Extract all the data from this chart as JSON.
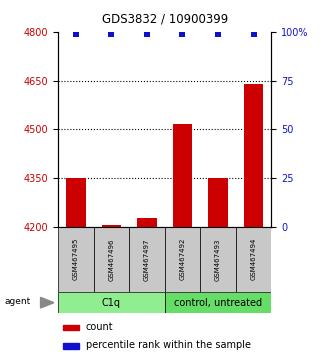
{
  "title": "GDS3832 / 10900399",
  "samples": [
    "GSM467495",
    "GSM467496",
    "GSM467497",
    "GSM467492",
    "GSM467493",
    "GSM467494"
  ],
  "counts": [
    4350,
    4205,
    4225,
    4515,
    4350,
    4640
  ],
  "percentiles": [
    99,
    99,
    99,
    99,
    99,
    99
  ],
  "groups": [
    {
      "label": "C1q",
      "color": "#90EE90",
      "span": [
        0,
        3
      ]
    },
    {
      "label": "control, untreated",
      "color": "#66DD66",
      "span": [
        3,
        6
      ]
    }
  ],
  "ymin": 4200,
  "ymax": 4800,
  "yticks": [
    4200,
    4350,
    4500,
    4650,
    4800
  ],
  "y2ticks": [
    0,
    25,
    50,
    75,
    100
  ],
  "bar_color": "#CC0000",
  "dot_color": "#1111CC",
  "dot_percentile": 99,
  "left_tick_color": "#CC0000",
  "right_tick_color": "#1111CC",
  "grid_yticks": [
    4350,
    4500,
    4650
  ],
  "bar_width": 0.55,
  "sample_box_color": "#C8C8C8",
  "bg_color": "#FFFFFF"
}
